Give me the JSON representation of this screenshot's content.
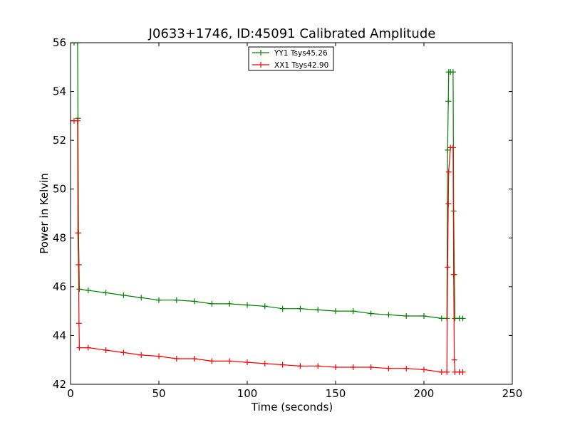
{
  "chart_data": {
    "type": "line",
    "title": "J0633+1746, ID:45091 Calibrated Amplitude",
    "xlabel": "Time (seconds)",
    "ylabel": "Power in Kelvin",
    "xlim": [
      0,
      250
    ],
    "ylim": [
      42,
      56
    ],
    "xticks": [
      0,
      50,
      100,
      150,
      200,
      250
    ],
    "yticks": [
      42,
      44,
      46,
      48,
      50,
      52,
      54,
      56
    ],
    "grid": false,
    "legend_position": "top-center",
    "series": [
      {
        "name": "YY1 Tsys45.26",
        "color": "#008000",
        "marker": "+",
        "x": [
          0,
          2,
          4,
          4.2,
          4.5,
          4.8,
          5,
          10,
          20,
          30,
          40,
          50,
          60,
          70,
          80,
          90,
          100,
          110,
          120,
          130,
          140,
          150,
          160,
          170,
          180,
          190,
          200,
          210,
          213,
          213.4,
          213.8,
          214,
          215,
          216.5,
          216.8,
          217.2,
          217.5,
          220,
          222
        ],
        "y": [
          56,
          56,
          56,
          52.9,
          48.2,
          46.9,
          45.9,
          45.85,
          45.75,
          45.65,
          45.55,
          45.45,
          45.45,
          45.4,
          45.3,
          45.3,
          45.25,
          45.2,
          45.1,
          45.1,
          45.05,
          45.0,
          45.0,
          44.9,
          44.85,
          44.8,
          44.8,
          44.7,
          44.7,
          51.6,
          53.6,
          54.8,
          54.8,
          54.8,
          49.1,
          46.5,
          44.7,
          44.7,
          44.7
        ]
      },
      {
        "name": "XX1 Tsys42.90",
        "color": "#ff0000",
        "marker": "+",
        "x": [
          0,
          2,
          4,
          4.2,
          4.5,
          4.8,
          5,
          10,
          20,
          30,
          40,
          50,
          60,
          70,
          80,
          90,
          100,
          110,
          120,
          130,
          140,
          150,
          160,
          170,
          180,
          190,
          200,
          210,
          213,
          213.4,
          213.8,
          214,
          215,
          216.5,
          216.8,
          217.2,
          217.5,
          220,
          222
        ],
        "y": [
          52.8,
          52.8,
          52.8,
          48.2,
          46.9,
          44.5,
          43.5,
          43.5,
          43.4,
          43.3,
          43.2,
          43.15,
          43.05,
          43.05,
          42.95,
          42.95,
          42.9,
          42.85,
          42.8,
          42.75,
          42.75,
          42.7,
          42.7,
          42.7,
          42.65,
          42.65,
          42.6,
          42.5,
          42.5,
          46.8,
          49.4,
          50.7,
          51.7,
          51.7,
          46.5,
          43.0,
          42.5,
          42.5,
          42.5
        ]
      }
    ]
  }
}
